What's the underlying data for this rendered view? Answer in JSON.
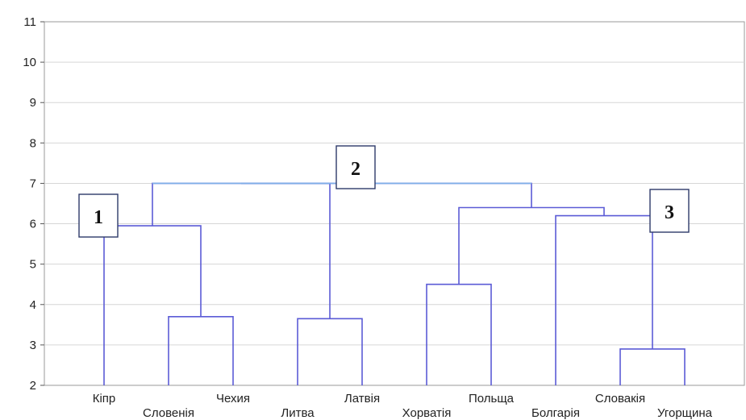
{
  "chart_data": {
    "type": "dendrogram",
    "title": "",
    "xlabel": "",
    "ylabel": "",
    "ylim": [
      2,
      11
    ],
    "y_ticks": [
      "2",
      "3",
      "4",
      "5",
      "6",
      "7",
      "8",
      "9",
      "10",
      "11"
    ],
    "grid": "horizontal",
    "leaves": [
      "Кіпр",
      "Словенія",
      "Чехия",
      "Литва",
      "Латвія",
      "Хорватія",
      "Польща",
      "Болгарія",
      "Словакія",
      "Угорщина"
    ],
    "merges": [
      {
        "left": "Словенія",
        "right": "Чехия",
        "height": 3.7
      },
      {
        "left": "Литва",
        "right": "Латвія",
        "height": 3.65
      },
      {
        "left": "Хорватія",
        "right": "Польща",
        "height": 4.5
      },
      {
        "left": "Словакія",
        "right": "Угорщина",
        "height": 2.9
      },
      {
        "left": "Кіпр",
        "right": "Словенія+Чехия",
        "height": 5.95
      },
      {
        "left": "Болгарія",
        "right": "Словакія+Угорщина",
        "height": 6.2
      },
      {
        "left": "Хорватія+Польща",
        "right": "Болгарія+Словакія+Угорщина",
        "height": 6.4
      },
      {
        "left": "Кіпр+Словенія+Чехия",
        "right": "Литва+Латвія",
        "height": 7.0
      },
      {
        "left": "Кіпр+Словенія+Чехия+Литва+Латвія",
        "right": "Хорватія+Польща+Болгарія+Словакія+Угорщина",
        "height": 7.0
      }
    ],
    "annotations": [
      {
        "text": "1",
        "anchor_height": 5.95
      },
      {
        "text": "2",
        "anchor_height": 7.0
      },
      {
        "text": "3",
        "anchor_height": 6.2
      }
    ],
    "colors": {
      "line": "#5b5bd6",
      "top_line": "#7fb0e8",
      "grid": "#d6d6d6",
      "axis": "#555555"
    }
  }
}
